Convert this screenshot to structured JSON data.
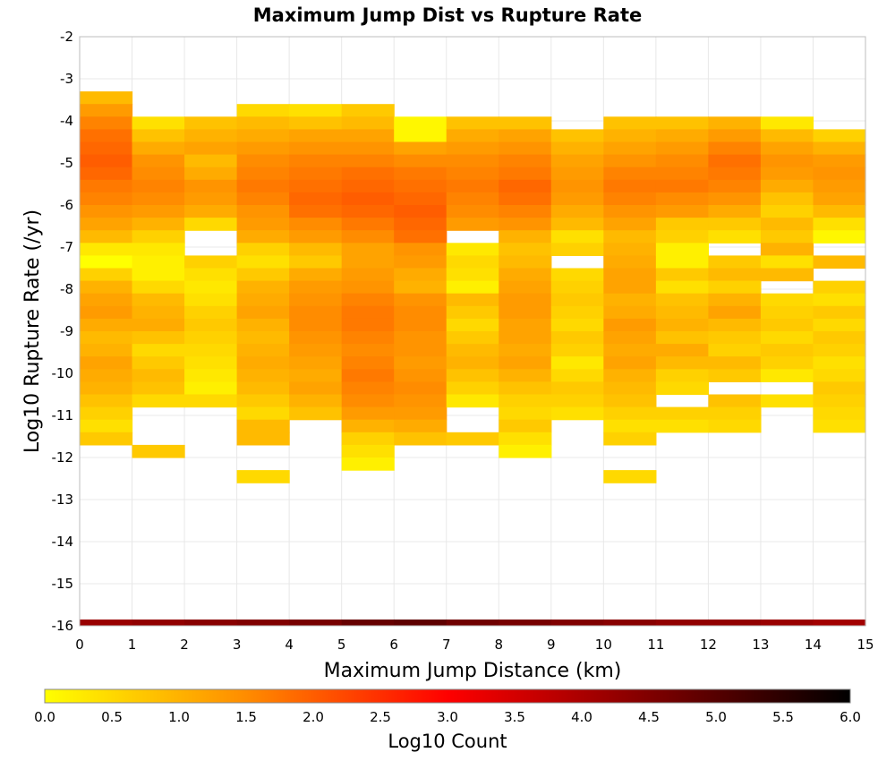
{
  "chart_data": {
    "type": "heatmap",
    "title": "Maximum Jump Dist vs Rupture Rate",
    "xlabel": "Maximum Jump Distance (km)",
    "ylabel": "Log10 Rupture Rate (/yr)",
    "xlim": [
      0,
      15
    ],
    "ylim": [
      -16,
      -2
    ],
    "x_ticks": [
      "0",
      "1",
      "2",
      "3",
      "4",
      "5",
      "6",
      "7",
      "8",
      "9",
      "10",
      "11",
      "12",
      "13",
      "14",
      "15"
    ],
    "y_ticks": [
      "-2",
      "-3",
      "-4",
      "-5",
      "-6",
      "-7",
      "-8",
      "-9",
      "-10",
      "-11",
      "-12",
      "-13",
      "-14",
      "-15",
      "-16"
    ],
    "grid": true,
    "cell_width_x": 1,
    "cell_height_y": 0.3,
    "colorbar": {
      "label": "Log10 Count",
      "range": [
        0,
        6
      ],
      "ticks": [
        "0.0",
        "0.5",
        "1.0",
        "1.5",
        "2.0",
        "2.5",
        "3.0",
        "3.5",
        "4.0",
        "4.5",
        "5.0",
        "5.5",
        "6.0"
      ],
      "palette": [
        "#ffff00",
        "#ff8c00",
        "#ff0000",
        "#800000",
        "#000000"
      ]
    },
    "columns": [
      {
        "x_start": 0,
        "y_top": -3.3,
        "values": [
          0.9,
          1.3,
          1.6,
          1.8,
          1.9,
          2.0,
          1.9,
          1.7,
          1.6,
          1.4,
          1.2,
          0.9,
          0.3,
          0.0,
          0.6,
          1.0,
          1.2,
          1.3,
          1.1,
          0.9,
          1.0,
          1.2,
          1.1,
          1.0,
          0.8,
          0.6,
          0.4,
          0.7
        ]
      },
      {
        "x_start": 1,
        "y_top": -3.9,
        "values": [
          0.4,
          0.8,
          1.1,
          1.4,
          1.5,
          1.6,
          1.5,
          1.3,
          1.0,
          0.6,
          0.3,
          0.2,
          0.2,
          0.5,
          0.9,
          1.0,
          1.1,
          0.8,
          0.5,
          0.7,
          0.9,
          0.8,
          0.5,
          null,
          null,
          null,
          0.7
        ]
      },
      {
        "x_start": 2,
        "y_top": -3.9,
        "values": [
          0.8,
          1.0,
          1.2,
          0.9,
          1.1,
          1.4,
          1.3,
          1.1,
          0.5,
          null,
          null,
          0.6,
          0.4,
          0.3,
          0.4,
          0.6,
          0.7,
          0.6,
          0.5,
          0.4,
          0.3,
          0.2,
          0.5
        ]
      },
      {
        "x_start": 3,
        "y_top": -3.6,
        "values": [
          0.5,
          0.9,
          1.1,
          1.3,
          1.5,
          1.6,
          1.7,
          1.6,
          1.4,
          1.3,
          1.1,
          0.6,
          0.4,
          0.7,
          1.0,
          1.1,
          1.2,
          1.0,
          0.9,
          1.0,
          1.1,
          1.0,
          0.9,
          0.7,
          0.5,
          0.9,
          0.9,
          null,
          null,
          0.5
        ]
      },
      {
        "x_start": 4,
        "y_top": -3.6,
        "values": [
          0.4,
          0.8,
          1.2,
          1.4,
          1.6,
          1.7,
          1.8,
          1.9,
          1.8,
          1.5,
          1.3,
          0.9,
          0.7,
          1.1,
          1.3,
          1.4,
          1.5,
          1.5,
          1.4,
          1.3,
          1.2,
          1.1,
          1.2,
          1.0,
          0.8
        ]
      },
      {
        "x_start": 5,
        "y_top": -3.6,
        "values": [
          0.7,
          0.9,
          1.2,
          1.4,
          1.6,
          1.8,
          1.9,
          2.0,
          1.9,
          1.7,
          1.5,
          1.2,
          1.2,
          1.3,
          1.4,
          1.6,
          1.7,
          1.7,
          1.6,
          1.5,
          1.6,
          1.7,
          1.6,
          1.5,
          1.3,
          1.0,
          0.6,
          0.4,
          0.2
        ]
      },
      {
        "x_start": 6,
        "y_top": -3.9,
        "values": [
          0.1,
          0.1,
          1.2,
          1.5,
          1.7,
          1.8,
          1.9,
          2.0,
          1.9,
          1.8,
          1.4,
          1.3,
          1.1,
          1.0,
          1.4,
          1.5,
          1.5,
          1.4,
          1.4,
          1.3,
          1.4,
          1.5,
          1.4,
          1.3,
          1.1,
          0.8
        ]
      },
      {
        "x_start": 7,
        "y_top": -3.9,
        "values": [
          0.8,
          1.1,
          1.3,
          1.5,
          1.6,
          1.7,
          1.6,
          1.5,
          1.3,
          null,
          0.3,
          0.5,
          0.4,
          0.2,
          0.9,
          0.7,
          0.5,
          0.7,
          0.9,
          1.0,
          0.8,
          0.6,
          0.3,
          null,
          null,
          0.7
        ]
      },
      {
        "x_start": 8,
        "y_top": -3.9,
        "values": [
          0.8,
          1.2,
          1.4,
          1.6,
          1.7,
          1.9,
          1.8,
          1.6,
          1.4,
          1.0,
          0.8,
          0.9,
          1.1,
          1.2,
          1.3,
          1.3,
          1.2,
          1.2,
          1.1,
          1.2,
          1.0,
          0.8,
          0.6,
          0.5,
          0.7,
          0.4,
          0.2
        ]
      },
      {
        "x_start": 9,
        "y_top": -4.2,
        "values": [
          0.8,
          1.0,
          1.2,
          1.3,
          1.4,
          1.3,
          1.1,
          0.9,
          0.4,
          0.6,
          null,
          0.5,
          0.6,
          0.7,
          0.6,
          0.5,
          0.7,
          0.6,
          0.3,
          0.5,
          0.7,
          0.6,
          0.4
        ]
      },
      {
        "x_start": 10,
        "y_top": -3.9,
        "values": [
          0.8,
          1.0,
          1.2,
          1.4,
          1.6,
          1.7,
          1.6,
          1.4,
          1.2,
          0.9,
          1.0,
          1.1,
          1.2,
          1.2,
          1.0,
          1.1,
          1.3,
          1.2,
          1.1,
          1.2,
          1.0,
          0.9,
          0.8,
          0.6,
          0.4,
          0.6,
          null,
          null,
          0.5
        ]
      },
      {
        "x_start": 11,
        "y_top": -3.9,
        "values": [
          0.8,
          1.1,
          1.3,
          1.5,
          1.6,
          1.7,
          1.5,
          1.3,
          0.7,
          0.6,
          0.2,
          0.2,
          0.7,
          0.4,
          0.8,
          0.9,
          1.0,
          0.8,
          1.1,
          0.9,
          0.6,
          0.5,
          null,
          0.6,
          0.4
        ]
      },
      {
        "x_start": 12,
        "y_top": -3.9,
        "values": [
          1.0,
          1.3,
          1.6,
          1.8,
          1.7,
          1.6,
          1.4,
          1.1,
          0.7,
          0.4,
          null,
          0.7,
          0.9,
          0.6,
          1.0,
          1.2,
          0.9,
          0.7,
          0.6,
          0.9,
          0.7,
          null,
          0.8,
          0.6,
          0.5
        ]
      },
      {
        "x_start": 13,
        "y_top": -3.9,
        "values": [
          0.3,
          0.9,
          1.2,
          1.4,
          1.3,
          1.1,
          0.8,
          0.6,
          0.9,
          0.7,
          1.0,
          0.4,
          0.9,
          null,
          0.5,
          0.6,
          0.7,
          0.5,
          0.7,
          0.6,
          0.3,
          null,
          0.4
        ]
      },
      {
        "x_start": 14,
        "y_top": -4.2,
        "values": [
          0.6,
          1.0,
          1.3,
          1.4,
          1.3,
          1.2,
          0.9,
          0.4,
          0.1,
          null,
          0.9,
          null,
          0.6,
          0.4,
          0.7,
          0.5,
          0.7,
          0.6,
          0.4,
          0.5,
          0.7,
          0.6,
          0.5,
          0.4
        ]
      }
    ],
    "bottom_row": {
      "y_start": -16.0,
      "y_end": -15.85,
      "values": [
        4.2,
        4.3,
        4.4,
        4.5,
        4.6,
        4.8,
        4.9,
        4.7,
        4.6,
        4.5,
        4.4,
        4.3,
        4.3,
        4.2,
        4.1
      ]
    }
  }
}
